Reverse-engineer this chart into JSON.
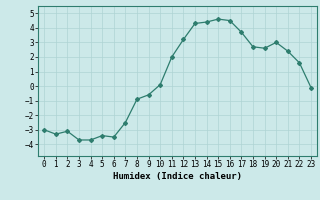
{
  "x": [
    0,
    1,
    2,
    3,
    4,
    5,
    6,
    7,
    8,
    9,
    10,
    11,
    12,
    13,
    14,
    15,
    16,
    17,
    18,
    19,
    20,
    21,
    22,
    23
  ],
  "y": [
    -3.0,
    -3.3,
    -3.1,
    -3.7,
    -3.7,
    -3.4,
    -3.5,
    -2.5,
    -0.9,
    -0.6,
    0.1,
    2.0,
    3.2,
    4.3,
    4.4,
    4.6,
    4.5,
    3.7,
    2.7,
    2.6,
    3.0,
    2.4,
    1.6,
    -0.1
  ],
  "line_color": "#2e7d6e",
  "marker": "D",
  "marker_size": 2.0,
  "linewidth": 0.9,
  "bg_color": "#cce9e9",
  "grid_color": "#afd4d4",
  "xlabel": "Humidex (Indice chaleur)",
  "xlabel_fontsize": 6.5,
  "ylim": [
    -4.8,
    5.5
  ],
  "xlim": [
    -0.5,
    23.5
  ],
  "yticks": [
    -4,
    -3,
    -2,
    -1,
    0,
    1,
    2,
    3,
    4,
    5
  ],
  "xtick_labels": [
    "0",
    "1",
    "2",
    "3",
    "4",
    "5",
    "6",
    "7",
    "8",
    "9",
    "10",
    "11",
    "12",
    "13",
    "14",
    "15",
    "16",
    "17",
    "18",
    "19",
    "20",
    "21",
    "22",
    "23"
  ],
  "tick_fontsize": 5.5
}
